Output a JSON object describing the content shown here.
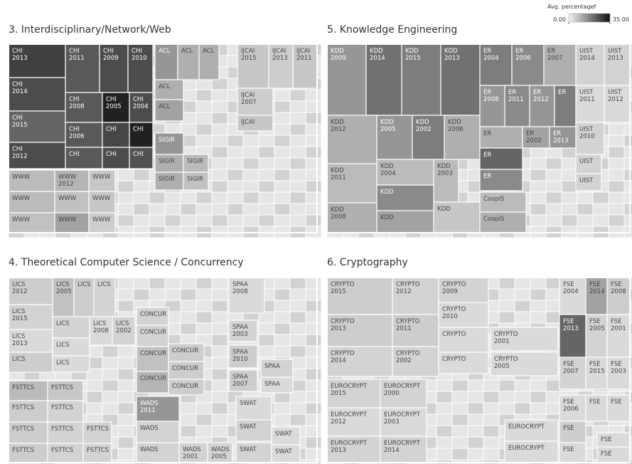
{
  "chart_data": {
    "type": "treemap",
    "legend": {
      "title": "Avg. percentagef",
      "ticks": [
        {
          "value": 0,
          "label": "0.00"
        },
        {
          "value": 35,
          "label": "35.00"
        }
      ]
    },
    "panels": [
      {
        "title": "3. Interdisciplinary/Network/Web",
        "cells": [
          {
            "label": [
              "CHI",
              "2013"
            ],
            "value": 28
          },
          {
            "label": [
              "CHI",
              "2014"
            ],
            "value": 26
          },
          {
            "label": [
              "CHI",
              "2015"
            ],
            "value": 22
          },
          {
            "label": [
              "CHI",
              "2012"
            ],
            "value": 26
          },
          {
            "label": [
              "CHI",
              "2011"
            ],
            "value": 24
          },
          {
            "label": [
              "CHI",
              "2009"
            ],
            "value": 26
          },
          {
            "label": [
              "CHI",
              "2010"
            ],
            "value": 26
          },
          {
            "label": [
              "CHI",
              "2008"
            ],
            "value": 24
          },
          {
            "label": [
              "CHI",
              "2005"
            ],
            "value": 33
          },
          {
            "label": [
              "CHI",
              "2004"
            ],
            "value": 26
          },
          {
            "label": [
              "CHI",
              "2006"
            ],
            "value": 24
          },
          {
            "label": [
              "CHI"
            ],
            "value": 27
          },
          {
            "label": [
              "CHI"
            ],
            "value": 33
          },
          {
            "label": [
              "CHI"
            ],
            "value": 24
          },
          {
            "label": [
              "CHI"
            ],
            "value": 26
          },
          {
            "label": [
              "CHI"
            ],
            "value": 25
          },
          {
            "label": [
              "WWW"
            ],
            "value": 8
          },
          {
            "label": [
              "WWW",
              "2012"
            ],
            "value": 9
          },
          {
            "label": [
              "WWW"
            ],
            "value": 6
          },
          {
            "label": [
              "WWW"
            ],
            "value": 8
          },
          {
            "label": [
              "WWW"
            ],
            "value": 7
          },
          {
            "label": [
              "WWW"
            ],
            "value": 6
          },
          {
            "label": [
              "WWW"
            ],
            "value": 7
          },
          {
            "label": [
              "WWW"
            ],
            "value": 12
          },
          {
            "label": [
              "WWW"
            ],
            "value": 5
          },
          {
            "label": [
              "ACL"
            ],
            "value": 14
          },
          {
            "label": [
              "ACL"
            ],
            "value": 10
          },
          {
            "label": [
              "ACL"
            ],
            "value": 10
          },
          {
            "label": [
              "ACL"
            ],
            "value": 10
          },
          {
            "label": [
              "ACL"
            ],
            "value": 12
          },
          {
            "label": [
              "SIGIR"
            ],
            "value": 14
          },
          {
            "label": [
              "SIGIR"
            ],
            "value": 10
          },
          {
            "label": [
              "SIGIR"
            ],
            "value": 8
          },
          {
            "label": [
              "SIGIR"
            ],
            "value": 10
          },
          {
            "label": [
              "SIGIR"
            ],
            "value": 7
          },
          {
            "label": [
              "IJCAI",
              "2015"
            ],
            "value": 6
          },
          {
            "label": [
              "IJCAI",
              "2013"
            ],
            "value": 5
          },
          {
            "label": [
              "IJCAI",
              "2011"
            ],
            "value": 6
          },
          {
            "label": [
              "IJCAI",
              "2007"
            ],
            "value": 5
          },
          {
            "label": [
              "IJCAI"
            ],
            "value": 6
          }
        ]
      },
      {
        "title": "5. Knowledge Engineering",
        "cells": [
          {
            "label": [
              "KDD",
              "2009"
            ],
            "value": 14
          },
          {
            "label": [
              "KDD",
              "2014"
            ],
            "value": 20
          },
          {
            "label": [
              "KDD",
              "2015"
            ],
            "value": 18
          },
          {
            "label": [
              "KDD",
              "2013"
            ],
            "value": 20
          },
          {
            "label": [
              "KDD",
              "2012"
            ],
            "value": 10
          },
          {
            "label": [
              "KDD",
              "2005"
            ],
            "value": 14
          },
          {
            "label": [
              "KDD",
              "2002"
            ],
            "value": 18
          },
          {
            "label": [
              "KDD",
              "2006"
            ],
            "value": 10
          },
          {
            "label": [
              "KDD",
              "2011"
            ],
            "value": 8
          },
          {
            "label": [
              "KDD",
              "2004"
            ],
            "value": 8
          },
          {
            "label": [
              "KDD",
              "2003"
            ],
            "value": 8
          },
          {
            "label": [
              "KDD"
            ],
            "value": 16
          },
          {
            "label": [
              "KDD",
              "2008"
            ],
            "value": 10
          },
          {
            "label": [
              "KDD"
            ],
            "value": 12
          },
          {
            "label": [
              "KDD"
            ],
            "value": 6
          },
          {
            "label": [
              "ER",
              "2004"
            ],
            "value": 18
          },
          {
            "label": [
              "ER",
              "2006"
            ],
            "value": 16
          },
          {
            "label": [
              "ER",
              "2007"
            ],
            "value": 10
          },
          {
            "label": [
              "ER",
              "2008"
            ],
            "value": 14
          },
          {
            "label": [
              "ER",
              "2011"
            ],
            "value": 16
          },
          {
            "label": [
              "ER",
              "2012"
            ],
            "value": 14
          },
          {
            "label": [
              "ER"
            ],
            "value": 18
          },
          {
            "label": [
              "ER"
            ],
            "value": 10
          },
          {
            "label": [
              "ER",
              "2002"
            ],
            "value": 12
          },
          {
            "label": [
              "ER",
              "2013"
            ],
            "value": 14
          },
          {
            "label": [
              "ER"
            ],
            "value": 22
          },
          {
            "label": [
              "ER"
            ],
            "value": 16
          },
          {
            "label": [
              "CoopIS"
            ],
            "value": 8
          },
          {
            "label": [
              "CoopIS"
            ],
            "value": 10
          },
          {
            "label": [
              "UIST",
              "2014"
            ],
            "value": 4
          },
          {
            "label": [
              "UIST",
              "2013"
            ],
            "value": 4
          },
          {
            "label": [
              "UIST",
              "2011"
            ],
            "value": 3
          },
          {
            "label": [
              "UIST",
              "2012"
            ],
            "value": 3
          },
          {
            "label": [
              "UIST",
              "2010"
            ],
            "value": 4
          },
          {
            "label": [
              "UIST"
            ],
            "value": 4
          },
          {
            "label": [
              "UIST"
            ],
            "value": 4
          }
        ]
      },
      {
        "title": "4. Theoretical Computer Science / Concurrency",
        "cells": [
          {
            "label": [
              "LICS",
              "2012"
            ],
            "value": 5
          },
          {
            "label": [
              "LICS",
              "2005"
            ],
            "value": 7
          },
          {
            "label": [
              "LICS"
            ],
            "value": 5
          },
          {
            "label": [
              "LICS"
            ],
            "value": 4
          },
          {
            "label": [
              "LICS",
              "2015"
            ],
            "value": 4
          },
          {
            "label": [
              "LICS",
              "2013"
            ],
            "value": 3
          },
          {
            "label": [
              "LICS"
            ],
            "value": 5
          },
          {
            "label": [
              "LICS"
            ],
            "value": 4
          },
          {
            "label": [
              "LICS",
              "2008"
            ],
            "value": 3
          },
          {
            "label": [
              "LICS",
              "2002"
            ],
            "value": 4
          },
          {
            "label": [
              "LICS"
            ],
            "value": 3
          },
          {
            "label": [
              "LICS"
            ],
            "value": 3
          },
          {
            "label": [
              "FSTTCS"
            ],
            "value": 8
          },
          {
            "label": [
              "FSTTCS"
            ],
            "value": 6
          },
          {
            "label": [
              "FSTTCS"
            ],
            "value": 5
          },
          {
            "label": [
              "FSTTCS"
            ],
            "value": 4
          },
          {
            "label": [
              "FSTTCS"
            ],
            "value": 5
          },
          {
            "label": [
              "FSTTCS"
            ],
            "value": 4
          },
          {
            "label": [
              "FSTTCS"
            ],
            "value": 4
          },
          {
            "label": [
              "FSTTCS"
            ],
            "value": 5
          },
          {
            "label": [
              "FSTTCS"
            ],
            "value": 4
          },
          {
            "label": [
              "FSTTCS"
            ],
            "value": 4
          },
          {
            "label": [
              "CONCUR"
            ],
            "value": 4
          },
          {
            "label": [
              "CONCUR"
            ],
            "value": 4
          },
          {
            "label": [
              "CONCUR"
            ],
            "value": 5
          },
          {
            "label": [
              "CONCUR"
            ],
            "value": 7
          },
          {
            "label": [
              "CONCUR"
            ],
            "value": 5
          },
          {
            "label": [
              "CONCUR"
            ],
            "value": 9
          },
          {
            "label": [
              "CONCUR"
            ],
            "value": 5
          },
          {
            "label": [
              "SPAA",
              "2008"
            ],
            "value": 3
          },
          {
            "label": [
              "SPAA",
              "2003"
            ],
            "value": 4
          },
          {
            "label": [
              "SPAA",
              "2010"
            ],
            "value": 5
          },
          {
            "label": [
              "SPAA"
            ],
            "value": 4
          },
          {
            "label": [
              "SPAA",
              "2007"
            ],
            "value": 5
          },
          {
            "label": [
              "SPAA"
            ],
            "value": 3
          },
          {
            "label": [
              "WADS",
              "2011"
            ],
            "value": 14
          },
          {
            "label": [
              "WADS"
            ],
            "value": 4
          },
          {
            "label": [
              "WADS"
            ],
            "value": 4
          },
          {
            "label": [
              "WADS",
              "2001"
            ],
            "value": 4
          },
          {
            "label": [
              "WADS",
              "2005"
            ],
            "value": 4
          },
          {
            "label": [
              "SWAT"
            ],
            "value": 3
          },
          {
            "label": [
              "SWAT"
            ],
            "value": 4
          },
          {
            "label": [
              "SWAT"
            ],
            "value": 3
          },
          {
            "label": [
              "SWAT"
            ],
            "value": 4
          },
          {
            "label": [
              "SWAT"
            ],
            "value": 3
          }
        ]
      },
      {
        "title": "6. Cryptography",
        "cells": [
          {
            "label": [
              "CRYPTO",
              "2015"
            ],
            "value": 5
          },
          {
            "label": [
              "CRYPTO",
              "2012"
            ],
            "value": 4
          },
          {
            "label": [
              "CRYPTO",
              "2009"
            ],
            "value": 4
          },
          {
            "label": [
              "CRYPTO",
              "2010"
            ],
            "value": 3
          },
          {
            "label": [
              "CRYPTO",
              "2013"
            ],
            "value": 5
          },
          {
            "label": [
              "CRYPTO",
              "2011"
            ],
            "value": 5
          },
          {
            "label": [
              "CRYPTO"
            ],
            "value": 3
          },
          {
            "label": [
              "CRYPTO",
              "2001"
            ],
            "value": 3
          },
          {
            "label": [
              "CRYPTO",
              "2014"
            ],
            "value": 4
          },
          {
            "label": [
              "CRYPTO",
              "2002"
            ],
            "value": 4
          },
          {
            "label": [
              "CRYPTO"
            ],
            "value": 3
          },
          {
            "label": [
              "CRYPTO",
              "2005"
            ],
            "value": 3
          },
          {
            "label": [
              "EUROCRYPT",
              "2015"
            ],
            "value": 4
          },
          {
            "label": [
              "EUROCRYPT",
              "2000"
            ],
            "value": 4
          },
          {
            "label": [
              "EUROCRYPT",
              "2012"
            ],
            "value": 3
          },
          {
            "label": [
              "EUROCRYPT",
              "2003"
            ],
            "value": 3
          },
          {
            "label": [
              "EUROCRYPT",
              "2013"
            ],
            "value": 4
          },
          {
            "label": [
              "EUROCRYPT",
              "2014"
            ],
            "value": 4
          },
          {
            "label": [
              "EUROCRYPT"
            ],
            "value": 3
          },
          {
            "label": [
              "EUROCRYPT"
            ],
            "value": 3
          },
          {
            "label": [
              "FSE",
              "2004"
            ],
            "value": 3
          },
          {
            "label": [
              "FSE",
              "2014"
            ],
            "value": 12
          },
          {
            "label": [
              "FSE",
              "2008"
            ],
            "value": 5
          },
          {
            "label": [
              "FSE",
              "2013"
            ],
            "value": 22
          },
          {
            "label": [
              "FSE",
              "2005"
            ],
            "value": 4
          },
          {
            "label": [
              "FSE",
              "2001"
            ],
            "value": 3
          },
          {
            "label": [
              "FSE",
              "2007"
            ],
            "value": 4
          },
          {
            "label": [
              "FSE",
              "2015"
            ],
            "value": 3
          },
          {
            "label": [
              "FSE",
              "2003"
            ],
            "value": 3
          },
          {
            "label": [
              "FSE",
              "2006"
            ],
            "value": 3
          },
          {
            "label": [
              "FSE"
            ],
            "value": 3
          },
          {
            "label": [
              "FSE"
            ],
            "value": 3
          },
          {
            "label": [
              "FSE"
            ],
            "value": 5
          },
          {
            "label": [
              "FSE"
            ],
            "value": 3
          },
          {
            "label": [
              "FSE"
            ],
            "value": 3
          },
          {
            "label": [
              "FSE"
            ],
            "value": 3
          }
        ]
      }
    ]
  }
}
